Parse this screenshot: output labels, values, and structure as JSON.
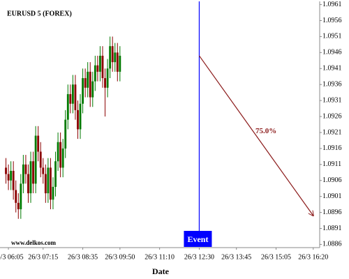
{
  "chart_data": {
    "type": "candlestick",
    "title": "EURUSD 5 (FOREX)",
    "watermark": "www.delkos.com",
    "x_label": "Date",
    "x": [
      "26/3 06:00",
      "26/3 06:05",
      "26/3 06:10",
      "26/3 06:15",
      "26/3 06:20",
      "26/3 06:25",
      "26/3 06:30",
      "26/3 06:35",
      "26/3 06:40",
      "26/3 06:45",
      "26/3 06:50",
      "26/3 06:55",
      "26/3 07:00",
      "26/3 07:05",
      "26/3 07:10",
      "26/3 07:15",
      "26/3 07:20",
      "26/3 07:25",
      "26/3 07:30",
      "26/3 07:35",
      "26/3 07:40",
      "26/3 07:45",
      "26/3 07:50",
      "26/3 07:55",
      "26/3 08:00",
      "26/3 08:05",
      "26/3 08:10",
      "26/3 08:15",
      "26/3 08:20",
      "26/3 08:25",
      "26/3 08:30",
      "26/3 08:35",
      "26/3 08:40",
      "26/3 08:45",
      "26/3 08:50",
      "26/3 08:55",
      "26/3 09:00",
      "26/3 09:05",
      "26/3 09:10",
      "26/3 09:15",
      "26/3 09:20",
      "26/3 09:25",
      "26/3 09:30",
      "26/3 09:35",
      "26/3 09:40",
      "26/3 09:45",
      "26/3 09:50"
    ],
    "open": [
      1.091,
      1.0908,
      1.0906,
      1.0909,
      1.0903,
      1.0899,
      1.0897,
      1.0905,
      1.0911,
      1.0908,
      1.0902,
      1.0912,
      1.0905,
      1.092,
      1.0915,
      1.091,
      1.0908,
      1.0902,
      1.091,
      1.09,
      1.0904,
      1.0912,
      1.0918,
      1.091,
      1.0916,
      1.0925,
      1.0933,
      1.093,
      1.0936,
      1.0928,
      1.0922,
      1.093,
      1.0938,
      1.0935,
      1.094,
      1.0932,
      1.0937,
      1.0942,
      1.094,
      1.0945,
      1.0938,
      1.0935,
      1.0941,
      1.0948,
      1.0943,
      1.0946,
      1.094
    ],
    "high": [
      1.0913,
      1.0911,
      1.0912,
      1.0912,
      1.0906,
      1.0902,
      1.0908,
      1.0914,
      1.0914,
      1.0911,
      1.0915,
      1.0915,
      1.0923,
      1.0923,
      1.0918,
      1.0913,
      1.0911,
      1.0913,
      1.0913,
      1.0907,
      1.0915,
      1.0921,
      1.0921,
      1.0919,
      1.0928,
      1.0936,
      1.0936,
      1.0939,
      1.0939,
      1.0931,
      1.0933,
      1.0941,
      1.0941,
      1.0943,
      1.0943,
      1.094,
      1.0945,
      1.0945,
      1.0948,
      1.0948,
      1.0941,
      1.0944,
      1.0951,
      1.0951,
      1.0949,
      1.0949,
      1.0948
    ],
    "low": [
      1.0905,
      1.0903,
      1.0903,
      1.09,
      1.0896,
      1.0894,
      1.0894,
      1.0902,
      1.0905,
      1.0899,
      1.0899,
      1.0902,
      1.0902,
      1.0912,
      1.0907,
      1.0905,
      1.0899,
      1.0899,
      1.0897,
      1.0897,
      1.0901,
      1.0909,
      1.0907,
      1.0907,
      1.0913,
      1.0922,
      1.0927,
      1.0927,
      1.0925,
      1.0919,
      1.0919,
      1.0927,
      1.0932,
      1.0932,
      1.0929,
      1.0929,
      1.0934,
      1.0937,
      1.0937,
      1.0935,
      1.0926,
      1.0932,
      1.0938,
      1.094,
      1.094,
      1.0937,
      1.0937
    ],
    "close": [
      1.0908,
      1.0906,
      1.0909,
      1.0903,
      1.0899,
      1.0897,
      1.0905,
      1.0911,
      1.0908,
      1.0902,
      1.0912,
      1.0905,
      1.092,
      1.0915,
      1.091,
      1.0908,
      1.0902,
      1.091,
      1.09,
      1.0904,
      1.0912,
      1.0918,
      1.091,
      1.0916,
      1.0925,
      1.0933,
      1.093,
      1.0936,
      1.0928,
      1.0922,
      1.093,
      1.0938,
      1.0935,
      1.094,
      1.0932,
      1.0937,
      1.0942,
      1.094,
      1.0945,
      1.0938,
      1.0935,
      1.0941,
      1.0948,
      1.0943,
      1.0946,
      1.094,
      1.0945
    ],
    "up_color": "#007a00",
    "down_color": "#8b0000",
    "xlim": [
      "26/3 05:48",
      "26/3 16:33"
    ],
    "xticks": [
      "26/3 06:05",
      "26/3 07:15",
      "26/3 08:35",
      "26/3 09:50",
      "26/3 11:10",
      "26/3 12:30",
      "26/3 13:45",
      "26/3 15:05",
      "26/3 16:20"
    ],
    "ylim": [
      1.0885,
      1.0962
    ],
    "yticks": [
      1.0961,
      1.0956,
      1.0951,
      1.0946,
      1.0941,
      1.0936,
      1.0931,
      1.0926,
      1.0921,
      1.0916,
      1.0911,
      1.0906,
      1.0901,
      1.0896,
      1.0891,
      1.0886
    ],
    "event": {
      "label": "Event",
      "x": "26/3 12:30",
      "color": "#0000ff"
    },
    "arrow": {
      "label": "75.0%",
      "x": [
        "26/3 12:30",
        "26/3 16:20"
      ],
      "y": [
        1.0945,
        1.0895
      ],
      "color": "#8b1a1a"
    }
  }
}
